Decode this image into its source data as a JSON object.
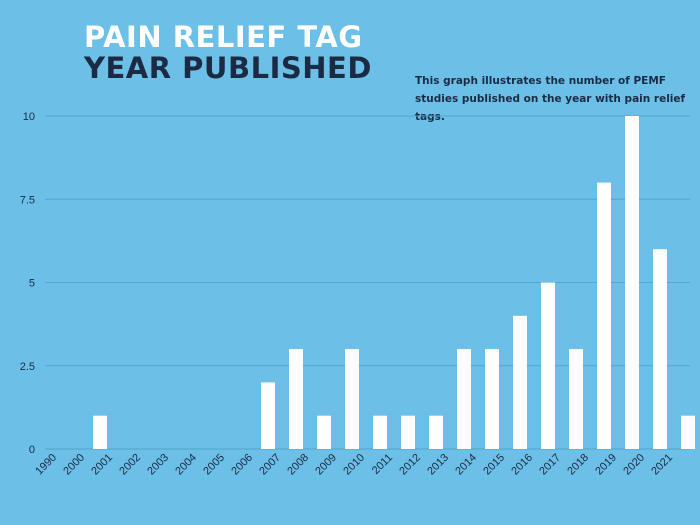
{
  "title_line1": "PAIN RELIEF TAG",
  "title_line2": "YEAR PUBLISHED",
  "note": "This graph illustrates the number of PEMF studies published on the year with pain relief tags.",
  "colors": {
    "background": "#6cbfe6",
    "bar": "#ffffff",
    "grid": "#4fa6cf",
    "text": "#1c2b44"
  },
  "chart_data": {
    "type": "bar",
    "categories": [
      "1990",
      "2000",
      "2001",
      "2002",
      "2003",
      "2004",
      "2005",
      "2006",
      "2007",
      "2008",
      "2009",
      "2010",
      "2011",
      "2012",
      "2013",
      "2014",
      "2015",
      "2016",
      "2017",
      "2018",
      "2019",
      "2020",
      "2021"
    ],
    "values": [
      0,
      1,
      0,
      0,
      0,
      0,
      0,
      2,
      3,
      1,
      3,
      1,
      1,
      1,
      3,
      3,
      4,
      5,
      3,
      8,
      10,
      6,
      1
    ],
    "ylim": [
      0,
      10
    ],
    "yticks": [
      "0",
      "2.5",
      "5",
      "7.5",
      "10"
    ],
    "ytick_values": [
      0,
      2.5,
      5,
      7.5,
      10
    ],
    "grid": true
  }
}
